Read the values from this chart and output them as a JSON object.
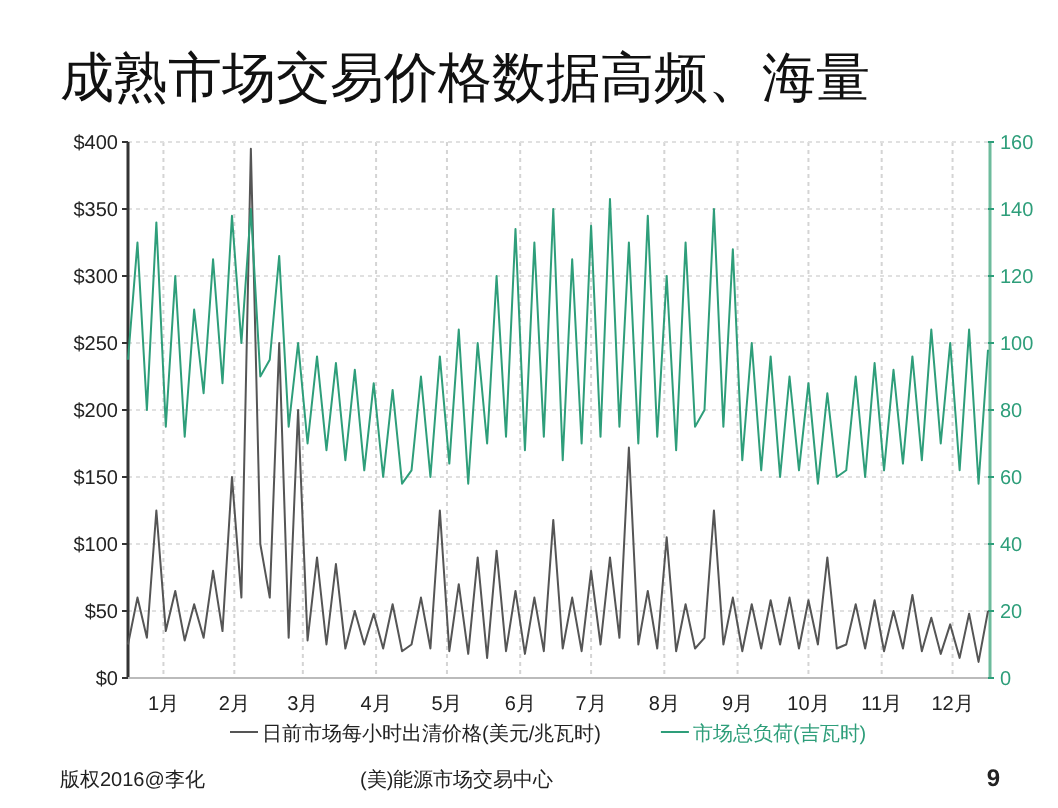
{
  "chart_data": {
    "type": "line",
    "title": "成熟市场交易价格数据高频、海量",
    "x": [
      "--01-01",
      "--01-05",
      "--01-09",
      "--01-13",
      "--01-17",
      "--01-21",
      "--01-25",
      "--01-29",
      "--02-02",
      "--02-06",
      "--02-10",
      "--02-14",
      "--02-18",
      "--02-22",
      "--02-26",
      "--03-02",
      "--03-06",
      "--03-10",
      "--03-14",
      "--03-18",
      "--03-22",
      "--03-26",
      "--03-30",
      "--04-03",
      "--04-07",
      "--04-11",
      "--04-15",
      "--04-19",
      "--04-23",
      "--04-27",
      "--05-01",
      "--05-05",
      "--05-09",
      "--05-13",
      "--05-17",
      "--05-21",
      "--05-25",
      "--05-29",
      "--06-02",
      "--06-06",
      "--06-10",
      "--06-14",
      "--06-18",
      "--06-22",
      "--06-26",
      "--06-30",
      "--07-04",
      "--07-08",
      "--07-12",
      "--07-16",
      "--07-20",
      "--07-24",
      "--07-28",
      "--08-01",
      "--08-05",
      "--08-09",
      "--08-13",
      "--08-17",
      "--08-21",
      "--08-25",
      "--08-29",
      "--09-02",
      "--09-06",
      "--09-10",
      "--09-14",
      "--09-18",
      "--09-22",
      "--09-26",
      "--09-30",
      "--10-04",
      "--10-08",
      "--10-12",
      "--10-16",
      "--10-20",
      "--10-24",
      "--10-28",
      "--11-01",
      "--11-05",
      "--11-09",
      "--11-13",
      "--11-17",
      "--11-21",
      "--11-25",
      "--11-29",
      "--12-03",
      "--12-07",
      "--12-11",
      "--12-15",
      "--12-19",
      "--12-23",
      "--12-27",
      "--12-31"
    ],
    "xlim": [
      "--01-01",
      "--12-31"
    ],
    "xticks": [
      {
        "value": "--01-16",
        "label": "1月"
      },
      {
        "value": "--02-15",
        "label": "2月"
      },
      {
        "value": "--03-16",
        "label": "3月"
      },
      {
        "value": "--04-16",
        "label": "4月"
      },
      {
        "value": "--05-16",
        "label": "5月"
      },
      {
        "value": "--06-16",
        "label": "6月"
      },
      {
        "value": "--07-16",
        "label": "7月"
      },
      {
        "value": "--08-16",
        "label": "8月"
      },
      {
        "value": "--09-16",
        "label": "9月"
      },
      {
        "value": "--10-16",
        "label": "10月"
      },
      {
        "value": "--11-16",
        "label": "11月"
      },
      {
        "value": "--12-16",
        "label": "12月"
      }
    ],
    "ylim": [
      0,
      400
    ],
    "yticks": [
      {
        "value": 0,
        "label": "$0"
      },
      {
        "value": 50,
        "label": "$50"
      },
      {
        "value": 100,
        "label": "$100"
      },
      {
        "value": 150,
        "label": "$150"
      },
      {
        "value": 200,
        "label": "$200"
      },
      {
        "value": 250,
        "label": "$250"
      },
      {
        "value": 300,
        "label": "$300"
      },
      {
        "value": 350,
        "label": "$350"
      },
      {
        "value": 400,
        "label": "$400"
      }
    ],
    "y2lim": [
      0,
      160
    ],
    "y2ticks": [
      0,
      20,
      40,
      60,
      80,
      100,
      120,
      140,
      160
    ],
    "grid": true,
    "legend": "bottom",
    "series": [
      {
        "name": "日前市场每小时出清价格(美元/兆瓦时)",
        "color": "#555555",
        "values": [
          25,
          60,
          30,
          125,
          35,
          65,
          28,
          55,
          30,
          80,
          35,
          150,
          60,
          395,
          100,
          60,
          250,
          30,
          200,
          28,
          90,
          25,
          85,
          22,
          50,
          25,
          48,
          22,
          55,
          20,
          25,
          60,
          22,
          125,
          20,
          70,
          18,
          90,
          15,
          95,
          20,
          65,
          18,
          60,
          20,
          118,
          22,
          60,
          20,
          80,
          25,
          90,
          30,
          172,
          25,
          65,
          22,
          105,
          20,
          55,
          22,
          30,
          125,
          25,
          60,
          20,
          55,
          22,
          58,
          25,
          60,
          22,
          58,
          25,
          90,
          22,
          25,
          55,
          22,
          58,
          20,
          50,
          22,
          62,
          20,
          45,
          18,
          40,
          15,
          48,
          12,
          50
        ]
      },
      {
        "name": "市场总负荷(吉瓦时)",
        "color": "#2e9e7a",
        "axis": "y2",
        "values": [
          95,
          130,
          80,
          136,
          75,
          120,
          72,
          110,
          85,
          125,
          88,
          138,
          100,
          140,
          90,
          95,
          126,
          75,
          100,
          70,
          96,
          68,
          94,
          65,
          92,
          62,
          88,
          60,
          86,
          58,
          62,
          90,
          60,
          96,
          64,
          104,
          58,
          100,
          70,
          120,
          72,
          134,
          68,
          130,
          72,
          140,
          65,
          125,
          70,
          135,
          72,
          143,
          75,
          130,
          70,
          138,
          72,
          120,
          68,
          130,
          75,
          80,
          140,
          75,
          128,
          65,
          100,
          62,
          96,
          60,
          90,
          62,
          88,
          58,
          85,
          60,
          62,
          90,
          60,
          94,
          62,
          92,
          64,
          96,
          65,
          104,
          70,
          100,
          62,
          104,
          58,
          98
        ]
      }
    ],
    "annotations": [
      "版权2016@李化",
      "(美)能源市场交易中心",
      "9"
    ]
  }
}
